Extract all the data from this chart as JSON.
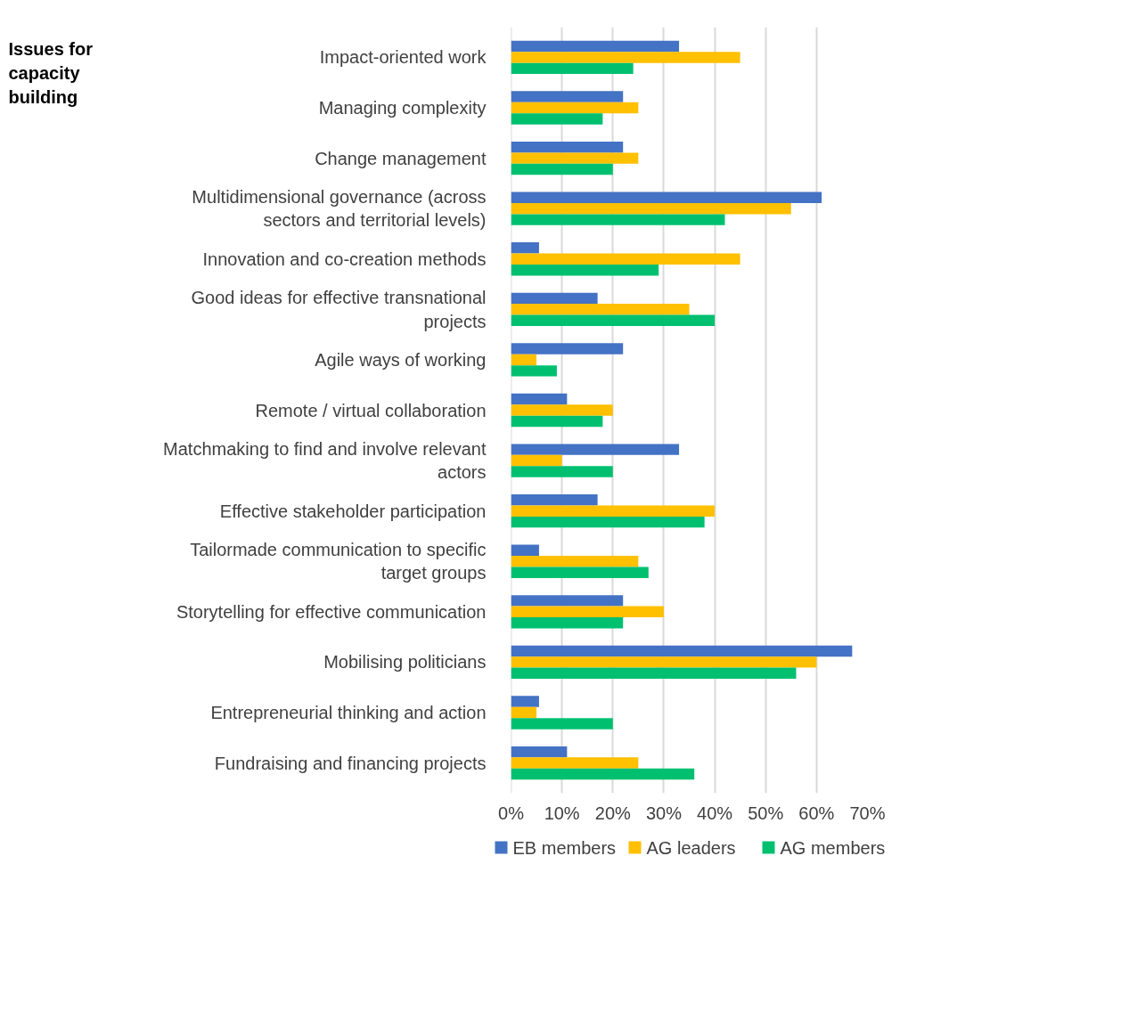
{
  "chart_data": {
    "type": "bar",
    "orientation": "horizontal",
    "title": "Issues for capacity building",
    "categories": [
      "Impact-oriented work",
      "Managing complexity",
      "Change management",
      "Multidimensional governance (across sectors and territorial levels)",
      "Innovation and co-creation methods",
      "Good ideas for effective transnational projects",
      "Agile ways of working",
      "Remote / virtual collaboration",
      "Matchmaking to find and involve relevant actors",
      "Effective stakeholder participation",
      "Tailormade communication to specific target groups",
      "Storytelling for effective communication",
      "Mobilising politicians",
      "Entrepreneurial thinking and action",
      "Fundraising and financing projects"
    ],
    "series": [
      {
        "name": "EB members",
        "color": "#4472c4",
        "values": [
          33,
          22,
          22,
          61,
          5.5,
          17,
          22,
          11,
          33,
          17,
          5.5,
          22,
          67,
          5.5,
          11
        ]
      },
      {
        "name": "AG leaders",
        "color": "#ffc000",
        "values": [
          45,
          25,
          25,
          55,
          45,
          35,
          5,
          20,
          10,
          40,
          25,
          30,
          60,
          5,
          25
        ]
      },
      {
        "name": "AG members",
        "color": "#00c070",
        "values": [
          24,
          18,
          20,
          42,
          29,
          40,
          9,
          18,
          20,
          38,
          27,
          22,
          56,
          20,
          36
        ]
      }
    ],
    "xlim": [
      0,
      70
    ],
    "xticks": [
      {
        "value": 0,
        "label": "0%"
      },
      {
        "value": 10,
        "label": "10%"
      },
      {
        "value": 20,
        "label": "20%"
      },
      {
        "value": 30,
        "label": "30%"
      },
      {
        "value": 40,
        "label": "40%"
      },
      {
        "value": 50,
        "label": "50%"
      },
      {
        "value": 60,
        "label": "60%"
      },
      {
        "value": 70,
        "label": "70%"
      }
    ],
    "grid": "x",
    "legend": "bottom"
  }
}
